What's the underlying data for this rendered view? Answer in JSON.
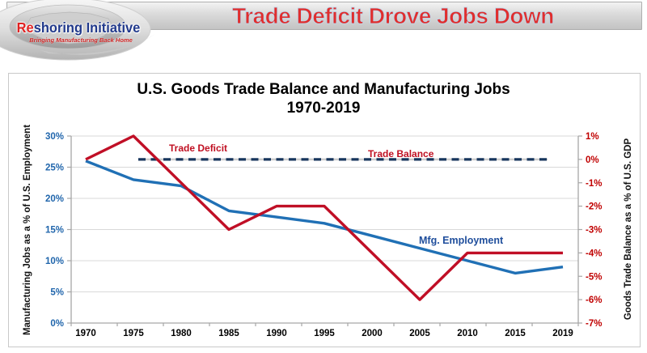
{
  "header": {
    "title": "Trade Deficit Drove Jobs Down"
  },
  "logo": {
    "brand_first": "Re",
    "brand_rest": "shoring Initiative",
    "tagline": "Bringing Manufacturing Back Home"
  },
  "chart_data": {
    "type": "line",
    "title": "U.S. Goods Trade Balance and Manufacturing Jobs",
    "subtitle": "1970-2019",
    "categories": [
      "1970",
      "1975",
      "1980",
      "1985",
      "1990",
      "1995",
      "2000",
      "2005",
      "2010",
      "2015",
      "2019"
    ],
    "grid": true,
    "legend_position": "inline-labels",
    "left_axis": {
      "label": "Manufacturing Jobs as a % of U.S. Employment",
      "min": 0,
      "max": 30,
      "tick_step": 5,
      "ticks": [
        "30%",
        "25%",
        "20%",
        "15%",
        "10%",
        "5%",
        "0%"
      ],
      "color": "#2166ac"
    },
    "right_axis": {
      "label": "Goods Trade Balance as a % of U.S. GDP",
      "min": -7,
      "max": 1,
      "tick_step": 1,
      "ticks": [
        "1%",
        "0%",
        "-1%",
        "-2%",
        "-3%",
        "-4%",
        "-5%",
        "-6%",
        "-7%"
      ],
      "color": "#c00000"
    },
    "series": [
      {
        "name": "Mfg. Employment",
        "axis": "left",
        "color": "#2070b5",
        "line_style": "solid",
        "values": [
          26,
          23,
          22,
          18,
          17,
          16,
          14,
          12,
          10,
          8,
          9
        ]
      },
      {
        "name": "Trade Deficit",
        "axis": "right",
        "color": "#c00f26",
        "line_style": "solid",
        "values": [
          0,
          1,
          -1,
          -3,
          -2,
          -2,
          -4,
          -6,
          -4,
          -4,
          -4
        ]
      },
      {
        "name": "Trade Balance",
        "axis": "right",
        "color": "#17365d",
        "line_style": "dashed",
        "values": [
          0,
          0,
          0,
          0,
          0,
          0,
          0,
          0,
          0,
          0,
          0
        ]
      }
    ],
    "annotations": {
      "trade_deficit": "Trade Deficit",
      "trade_balance": "Trade Balance",
      "mfg_employment": "Mfg. Employment"
    }
  }
}
